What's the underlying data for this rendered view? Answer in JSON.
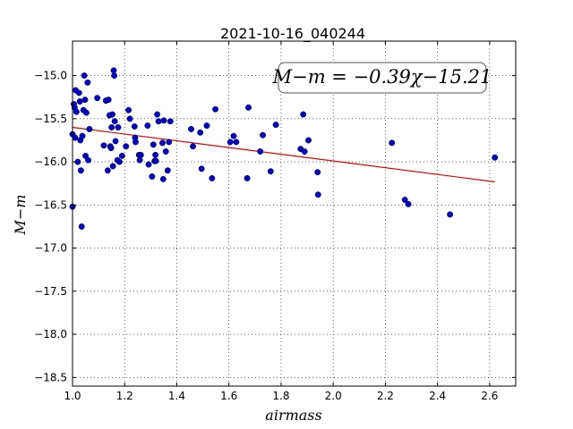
{
  "chart_data": {
    "type": "scatter",
    "title": "2021-10-16_040244",
    "xlabel": "airmass",
    "ylabel": "M−m",
    "xlim": [
      1.0,
      2.7
    ],
    "ylim": [
      -18.6,
      -14.6
    ],
    "y_inverted": true,
    "grid": true,
    "x_ticks": [
      "1.0",
      "1.2",
      "1.4",
      "1.6",
      "1.8",
      "2.0",
      "2.2",
      "2.4",
      "2.6"
    ],
    "y_ticks": [
      "−15.0",
      "−15.5",
      "−16.0",
      "−16.5",
      "−17.0",
      "−17.5",
      "−18.0",
      "−18.5"
    ],
    "annotation": "M−m = −0.39χ−15.21",
    "point_color": "#0000cc",
    "fit_color": "#dd0000",
    "fit": {
      "slope": -0.39,
      "intercept": -15.21,
      "x_range": [
        1.0,
        2.62
      ]
    },
    "points": [
      [
        1.0,
        -15.68
      ],
      [
        1.0,
        -16.52
      ],
      [
        1.005,
        -15.33
      ],
      [
        1.008,
        -15.37
      ],
      [
        1.01,
        -15.72
      ],
      [
        1.012,
        -15.17
      ],
      [
        1.015,
        -15.42
      ],
      [
        1.02,
        -16.0
      ],
      [
        1.025,
        -15.2
      ],
      [
        1.028,
        -15.3
      ],
      [
        1.03,
        -15.75
      ],
      [
        1.032,
        -16.1
      ],
      [
        1.035,
        -16.75
      ],
      [
        1.038,
        -15.7
      ],
      [
        1.042,
        -15.4
      ],
      [
        1.045,
        -15.0
      ],
      [
        1.048,
        -15.28
      ],
      [
        1.05,
        -15.93
      ],
      [
        1.053,
        -15.43
      ],
      [
        1.058,
        -15.08
      ],
      [
        1.06,
        -15.98
      ],
      [
        1.065,
        -15.62
      ],
      [
        1.095,
        -15.26
      ],
      [
        1.12,
        -15.81
      ],
      [
        1.128,
        -15.29
      ],
      [
        1.135,
        -16.1
      ],
      [
        1.138,
        -15.28
      ],
      [
        1.142,
        -15.46
      ],
      [
        1.145,
        -15.82
      ],
      [
        1.148,
        -15.84
      ],
      [
        1.15,
        -15.6
      ],
      [
        1.153,
        -15.45
      ],
      [
        1.155,
        -16.05
      ],
      [
        1.158,
        -14.94
      ],
      [
        1.16,
        -15.0
      ],
      [
        1.162,
        -15.53
      ],
      [
        1.165,
        -15.76
      ],
      [
        1.172,
        -15.98
      ],
      [
        1.175,
        -15.6
      ],
      [
        1.18,
        -16.0
      ],
      [
        1.19,
        -15.93
      ],
      [
        1.205,
        -15.82
      ],
      [
        1.215,
        -15.4
      ],
      [
        1.22,
        -15.5
      ],
      [
        1.238,
        -15.59
      ],
      [
        1.24,
        -15.72
      ],
      [
        1.242,
        -15.77
      ],
      [
        1.255,
        -15.92
      ],
      [
        1.258,
        -15.98
      ],
      [
        1.262,
        -15.92
      ],
      [
        1.288,
        -15.58
      ],
      [
        1.292,
        -16.03
      ],
      [
        1.305,
        -16.17
      ],
      [
        1.31,
        -15.8
      ],
      [
        1.315,
        -15.99
      ],
      [
        1.318,
        -15.92
      ],
      [
        1.32,
        -15.99
      ],
      [
        1.325,
        -15.45
      ],
      [
        1.33,
        -15.53
      ],
      [
        1.345,
        -15.78
      ],
      [
        1.348,
        -16.2
      ],
      [
        1.35,
        -15.52
      ],
      [
        1.358,
        -15.88
      ],
      [
        1.365,
        -16.1
      ],
      [
        1.37,
        -15.77
      ],
      [
        1.375,
        -15.53
      ],
      [
        1.455,
        -15.62
      ],
      [
        1.462,
        -15.82
      ],
      [
        1.49,
        -15.66
      ],
      [
        1.495,
        -16.08
      ],
      [
        1.515,
        -15.58
      ],
      [
        1.535,
        -16.19
      ],
      [
        1.548,
        -15.39
      ],
      [
        1.605,
        -15.77
      ],
      [
        1.618,
        -15.7
      ],
      [
        1.628,
        -15.77
      ],
      [
        1.67,
        -16.19
      ],
      [
        1.675,
        -15.37
      ],
      [
        1.72,
        -15.88
      ],
      [
        1.73,
        -15.69
      ],
      [
        1.76,
        -16.11
      ],
      [
        1.78,
        -15.57
      ],
      [
        1.875,
        -15.85
      ],
      [
        1.885,
        -15.45
      ],
      [
        1.89,
        -15.88
      ],
      [
        1.905,
        -15.75
      ],
      [
        1.94,
        -16.12
      ],
      [
        1.942,
        -16.38
      ],
      [
        2.225,
        -15.78
      ],
      [
        2.275,
        -16.44
      ],
      [
        2.288,
        -16.49
      ],
      [
        2.448,
        -16.61
      ],
      [
        2.62,
        -15.95
      ]
    ]
  }
}
